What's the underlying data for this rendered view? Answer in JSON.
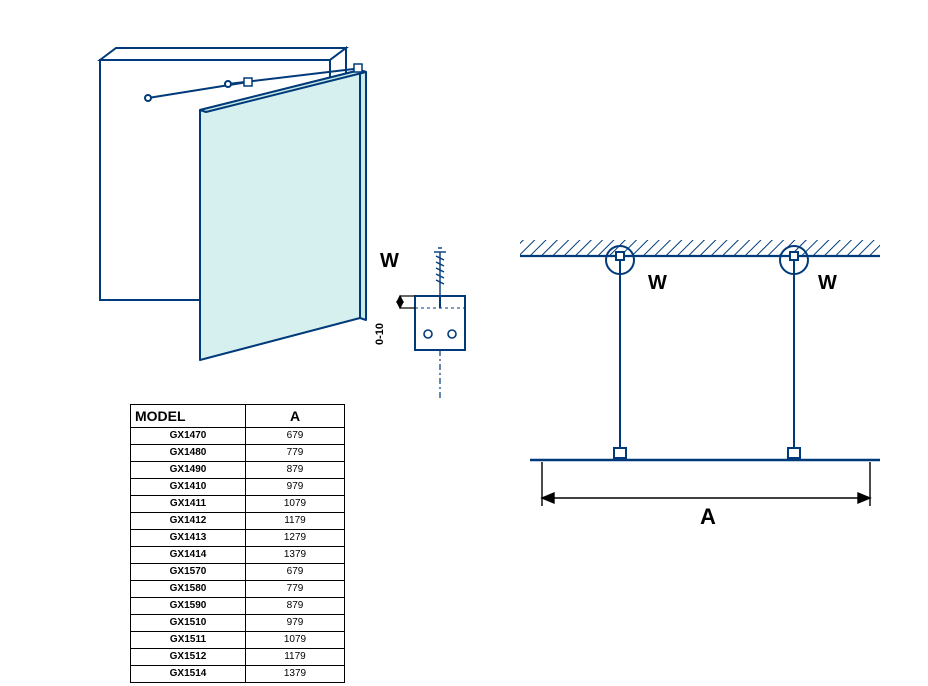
{
  "table": {
    "header_model": "MODEL",
    "header_a": "A",
    "rows": [
      {
        "model": "GX1470",
        "a": "679"
      },
      {
        "model": "GX1480",
        "a": "779"
      },
      {
        "model": "GX1490",
        "a": "879"
      },
      {
        "model": "GX1410",
        "a": "979"
      },
      {
        "model": "GX1411",
        "a": "1079"
      },
      {
        "model": "GX1412",
        "a": "1179"
      },
      {
        "model": "GX1413",
        "a": "1279"
      },
      {
        "model": "GX1414",
        "a": "1379"
      },
      {
        "model": "GX1570",
        "a": "679"
      },
      {
        "model": "GX1580",
        "a": "779"
      },
      {
        "model": "GX1590",
        "a": "879"
      },
      {
        "model": "GX1510",
        "a": "979"
      },
      {
        "model": "GX1511",
        "a": "1079"
      },
      {
        "model": "GX1512",
        "a": "1179"
      },
      {
        "model": "GX1514",
        "a": "1379"
      }
    ]
  },
  "labels": {
    "W": "W",
    "A": "A",
    "gap": "0-10"
  },
  "colors": {
    "stroke": "#003a7a",
    "stroke_black": "#000000",
    "glass_fill": "#d6f0ef",
    "glass_fill2": "#caeae8",
    "wall_fill": "#ffffff",
    "hatch": "#003a7a",
    "background": "#ffffff"
  },
  "stroke_widths": {
    "thick": 2.2,
    "med": 1.6,
    "thin": 1
  },
  "font": {
    "label_big": 20,
    "label_small": 11,
    "table_header": 14,
    "table_cell": 10
  }
}
